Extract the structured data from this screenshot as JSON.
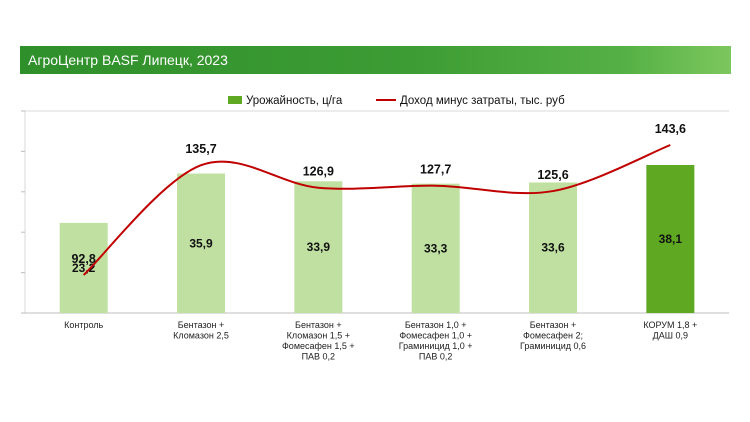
{
  "header": {
    "title": "АгроЦентр BASF Липецк, 2023"
  },
  "legend": {
    "bar_label": "Урожайность, ц/га",
    "line_label": "Доход минус затраты, тыс. руб"
  },
  "colors": {
    "banner": "#3d9c34",
    "bar_light": "#bfe0a1",
    "bar_dark": "#5fa822",
    "line": "#c00000"
  },
  "chart_data": {
    "type": "bar",
    "title": "",
    "xlabel": "",
    "ylabel": "",
    "categories": [
      [
        "Контроль"
      ],
      [
        "Бентазон +",
        "Кломазон  2,5"
      ],
      [
        "Бентазон +",
        "Кломазон 1,5 +",
        "Фомесафен  1,5 +",
        "ПАВ 0,2"
      ],
      [
        "Бентазон 1,0 +",
        "Фомесафен  1,0 +",
        "Граминицид  1,0 +",
        "ПАВ 0,2"
      ],
      [
        "Бентазон +",
        "Фомесафен 2;",
        "Граминицид  0,6"
      ],
      [
        "КОРУМ 1,8 +",
        "ДАШ 0,9"
      ]
    ],
    "series": [
      {
        "name": "Урожайность, ц/га",
        "type": "bar",
        "values": [
          23.2,
          35.9,
          33.9,
          33.3,
          33.6,
          38.1
        ],
        "labels": [
          "23,2",
          "35,9",
          "33,9",
          "33,3",
          "33,6",
          "38,1"
        ],
        "highlight_index": 5
      },
      {
        "name": "Доход минус затраты, тыс. руб",
        "type": "line",
        "values": [
          92.8,
          135.7,
          126.9,
          127.7,
          125.6,
          143.6
        ],
        "labels": [
          "92,8",
          "135,7",
          "126,9",
          "127,7",
          "125,6",
          "143,6"
        ]
      }
    ],
    "grid": false,
    "legend_position": "top"
  }
}
